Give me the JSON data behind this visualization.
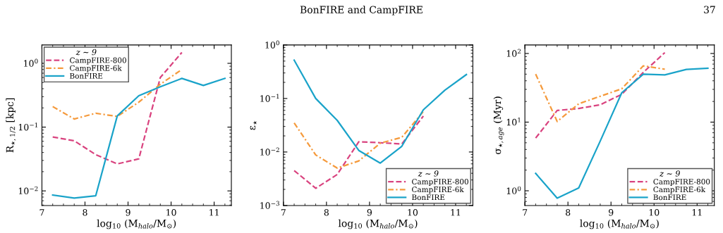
{
  "chart_data": [
    {
      "type": "line",
      "xlabel": "log$_{10}$ (M$_{halo}$/M$_{⊙}$)",
      "ylabel": "R$_{⋆,1/2}$ [kpc]",
      "legend_title": "z ∼ 9",
      "legend": "top left",
      "log": "y",
      "annotations": [
        "BonFIRE and CampFIRE",
        "37"
      ],
      "x": [
        7.25,
        7.75,
        8.25,
        8.75,
        9.25,
        9.75,
        10.25,
        10.75,
        11.25
      ],
      "xlim": [
        7,
        11.4
      ],
      "xticks": [
        7,
        8,
        9,
        10,
        11
      ],
      "ylim": [
        0.0059,
        1.94
      ],
      "yticks": [
        {
          "value": 0.01,
          "label": "10$^{−2}$"
        },
        {
          "value": 0.1,
          "label": "10$^{−1}$"
        },
        {
          "value": 1,
          "label": "10$^{0}$"
        }
      ],
      "series": [
        {
          "name": "CampFIRE-800",
          "color": "#d9437f",
          "line_style": "dashed",
          "values": [
            0.07,
            0.061,
            0.037,
            0.0265,
            0.0318,
            0.6,
            1.48,
            null,
            null
          ]
        },
        {
          "name": "CampFIRE-6k",
          "color": "#f59a3c",
          "line_style": "dashdot",
          "values": [
            0.21,
            0.134,
            0.165,
            0.147,
            0.246,
            0.47,
            0.8,
            null,
            null
          ]
        },
        {
          "name": "BonFIRE",
          "color": "#1aa3c9",
          "line_style": "solid",
          "values": [
            0.0086,
            0.0077,
            0.0084,
            0.15,
            0.31,
            0.43,
            0.58,
            0.45,
            0.58
          ]
        }
      ]
    },
    {
      "type": "line",
      "xlabel": "log$_{10}$ (M$_{halo}$/M$_{⊙}$)",
      "ylabel": "ε$_{⋆}$",
      "legend_title": "z ∼ 9",
      "legend": "bottom right",
      "log": "y",
      "x": [
        7.25,
        7.75,
        8.25,
        8.75,
        9.25,
        9.75,
        10.25,
        10.75,
        11.25
      ],
      "xlim": [
        7,
        11.4
      ],
      "xticks": [
        7,
        8,
        9,
        10,
        11
      ],
      "ylim": [
        0.001,
        1
      ],
      "yticks": [
        {
          "value": 0.001,
          "label": "10$^{−3}$"
        },
        {
          "value": 0.01,
          "label": "10$^{−2}$"
        },
        {
          "value": 0.1,
          "label": "10$^{−1}$"
        },
        {
          "value": 1,
          "label": "10$^{0}$"
        }
      ],
      "series": [
        {
          "name": "CampFIRE-800",
          "color": "#d9437f",
          "line_style": "dashed",
          "values": [
            0.0045,
            0.0021,
            0.0038,
            0.0155,
            0.0149,
            0.0141,
            0.047,
            null,
            null
          ]
        },
        {
          "name": "CampFIRE-6k",
          "color": "#f59a3c",
          "line_style": "dashdot",
          "values": [
            0.035,
            0.0088,
            0.005,
            0.0068,
            0.0146,
            0.0188,
            0.057,
            null,
            null
          ]
        },
        {
          "name": "BonFIRE",
          "color": "#1aa3c9",
          "line_style": "solid",
          "values": [
            0.52,
            0.1,
            0.039,
            0.0107,
            0.0062,
            0.0128,
            0.0615,
            0.143,
            0.28
          ]
        }
      ]
    },
    {
      "type": "line",
      "xlabel": "log$_{10}$ (M$_{halo}$/M$_{⊙}$)",
      "ylabel": "σ$_{⋆,age}$ (Myr)",
      "legend_title": "z ∼ 9",
      "legend": "bottom right",
      "log": "y",
      "x": [
        7.25,
        7.75,
        8.25,
        8.75,
        9.25,
        9.75,
        10.25,
        10.75,
        11.25
      ],
      "xlim": [
        7,
        11.4
      ],
      "xticks": [
        7,
        8,
        9,
        10,
        11
      ],
      "ylim": [
        0.61,
        133
      ],
      "yticks": [
        {
          "value": 1,
          "label": "10$^{0}$"
        },
        {
          "value": 10,
          "label": "10$^{1}$"
        },
        {
          "value": 100,
          "label": "10$^{2}$"
        }
      ],
      "series": [
        {
          "name": "CampFIRE-800",
          "color": "#d9437f",
          "line_style": "dashed",
          "values": [
            5.85,
            14.8,
            15.8,
            17.9,
            25.4,
            53,
            103,
            null,
            null
          ]
        },
        {
          "name": "CampFIRE-6k",
          "color": "#f59a3c",
          "line_style": "dashdot",
          "values": [
            50,
            10.2,
            18.5,
            23.8,
            30.6,
            66,
            59,
            null,
            null
          ]
        },
        {
          "name": "BonFIRE",
          "color": "#1aa3c9",
          "line_style": "solid",
          "values": [
            1.79,
            0.78,
            1.1,
            5.3,
            26.8,
            50,
            48.8,
            58.5,
            61
          ]
        }
      ]
    }
  ]
}
